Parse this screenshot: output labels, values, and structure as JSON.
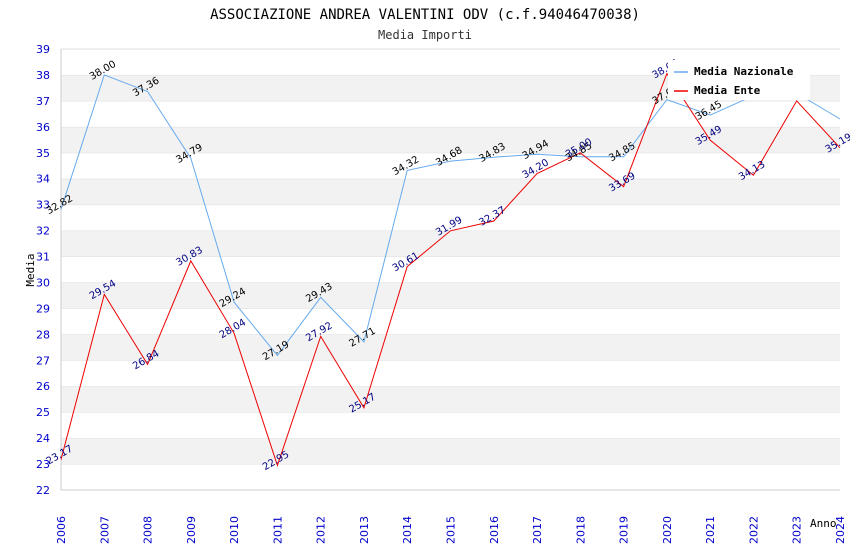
{
  "chart_data": {
    "type": "line",
    "title": "ASSOCIAZIONE ANDREA VALENTINI ODV (c.f.94046470038)",
    "subtitle": "Media Importi",
    "xlabel": "Anno",
    "ylabel": "Media",
    "ylim": [
      22,
      39
    ],
    "categories": [
      "2006",
      "2007",
      "2008",
      "2009",
      "2010",
      "2011",
      "2012",
      "2013",
      "2014",
      "2015",
      "2016",
      "2017",
      "2018",
      "2019",
      "2020",
      "2021",
      "2022",
      "2023",
      "2024"
    ],
    "series": [
      {
        "name": "Media Nazionale",
        "color": "#66aaee",
        "values": [
          32.82,
          38.0,
          37.36,
          34.79,
          29.24,
          27.19,
          29.43,
          27.71,
          34.32,
          34.68,
          34.83,
          34.94,
          34.85,
          34.85,
          37.05,
          36.45,
          37.2,
          37.3,
          36.3
        ],
        "labels": [
          "32.82",
          "38.00",
          "37.36",
          "34.79",
          "29.24",
          "27.19",
          "29.43",
          "27.71",
          "34.32",
          "34.68",
          "34.83",
          "34.94",
          "34.85",
          "34.85",
          "37.05",
          "36.45",
          "",
          "",
          ""
        ]
      },
      {
        "name": "Media Ente",
        "color": "#ee0000",
        "values": [
          23.17,
          29.54,
          26.84,
          30.83,
          28.04,
          22.95,
          27.92,
          25.17,
          30.61,
          31.99,
          32.37,
          34.2,
          35.0,
          33.69,
          38.05,
          35.49,
          34.13,
          37.0,
          35.19
        ],
        "labels": [
          "23.17",
          "29.54",
          "26.84",
          "30.83",
          "28.04",
          "22.95",
          "27.92",
          "25.17",
          "30.61",
          "31.99",
          "32.37",
          "34.20",
          "35.00",
          "33.69",
          "38.05",
          "35.49",
          "34.13",
          "",
          "35.19"
        ]
      }
    ],
    "legend": "top-right"
  }
}
